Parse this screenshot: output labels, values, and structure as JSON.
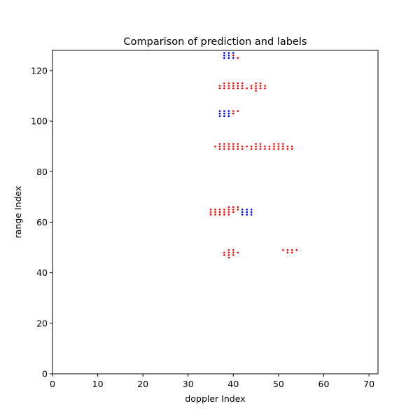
{
  "chart_data": {
    "type": "scatter",
    "title": "Comparison of prediction and labels",
    "xlabel": "doppler Index",
    "ylabel": "range Index",
    "xlim": [
      0,
      72
    ],
    "ylim": [
      0,
      128
    ],
    "xticks": [
      "0",
      "10",
      "20",
      "30",
      "40",
      "50",
      "60",
      "70"
    ],
    "yticks": [
      "0",
      "20",
      "40",
      "60",
      "80",
      "100",
      "120"
    ],
    "grid": false,
    "legend": "none",
    "series": [
      {
        "color": "#0000ff",
        "points": [
          [
            38,
            125
          ],
          [
            38,
            126
          ],
          [
            38,
            127
          ],
          [
            39,
            125
          ],
          [
            39,
            126
          ],
          [
            39,
            127
          ],
          [
            40,
            125
          ],
          [
            40,
            126
          ],
          [
            40,
            127
          ],
          [
            37,
            102
          ],
          [
            37,
            103
          ],
          [
            37,
            104
          ],
          [
            38,
            102
          ],
          [
            38,
            103
          ],
          [
            38,
            104
          ],
          [
            39,
            102
          ],
          [
            39,
            103
          ],
          [
            39,
            104
          ],
          [
            42,
            63
          ],
          [
            42,
            64
          ],
          [
            42,
            65
          ],
          [
            43,
            63
          ],
          [
            43,
            64
          ],
          [
            43,
            65
          ],
          [
            44,
            63
          ],
          [
            44,
            64
          ],
          [
            44,
            65
          ]
        ]
      },
      {
        "color": "#ff0000",
        "points": [
          [
            41,
            125
          ],
          [
            40,
            126
          ],
          [
            37,
            113
          ],
          [
            37,
            114
          ],
          [
            38,
            113
          ],
          [
            38,
            114
          ],
          [
            38,
            115
          ],
          [
            39,
            113
          ],
          [
            39,
            114
          ],
          [
            39,
            115
          ],
          [
            40,
            113
          ],
          [
            40,
            114
          ],
          [
            40,
            115
          ],
          [
            41,
            113
          ],
          [
            41,
            114
          ],
          [
            41,
            115
          ],
          [
            42,
            113
          ],
          [
            42,
            114
          ],
          [
            42,
            115
          ],
          [
            43,
            113
          ],
          [
            44,
            113
          ],
          [
            44,
            114
          ],
          [
            45,
            112
          ],
          [
            45,
            113
          ],
          [
            45,
            114
          ],
          [
            45,
            115
          ],
          [
            46,
            113
          ],
          [
            46,
            114
          ],
          [
            46,
            115
          ],
          [
            47,
            113
          ],
          [
            47,
            114
          ],
          [
            40,
            103
          ],
          [
            40,
            104
          ],
          [
            41,
            104
          ],
          [
            36,
            90
          ],
          [
            37,
            89
          ],
          [
            37,
            90
          ],
          [
            37,
            91
          ],
          [
            38,
            89
          ],
          [
            38,
            90
          ],
          [
            38,
            91
          ],
          [
            39,
            89
          ],
          [
            39,
            90
          ],
          [
            39,
            91
          ],
          [
            40,
            89
          ],
          [
            40,
            90
          ],
          [
            40,
            91
          ],
          [
            41,
            89
          ],
          [
            41,
            90
          ],
          [
            41,
            91
          ],
          [
            42,
            89
          ],
          [
            42,
            90
          ],
          [
            43,
            90
          ],
          [
            44,
            89
          ],
          [
            44,
            90
          ],
          [
            45,
            89
          ],
          [
            45,
            90
          ],
          [
            45,
            91
          ],
          [
            46,
            89
          ],
          [
            46,
            90
          ],
          [
            46,
            91
          ],
          [
            47,
            89
          ],
          [
            47,
            90
          ],
          [
            48,
            89
          ],
          [
            48,
            90
          ],
          [
            49,
            89
          ],
          [
            49,
            90
          ],
          [
            49,
            91
          ],
          [
            50,
            89
          ],
          [
            50,
            90
          ],
          [
            50,
            91
          ],
          [
            51,
            89
          ],
          [
            51,
            90
          ],
          [
            51,
            91
          ],
          [
            52,
            89
          ],
          [
            52,
            90
          ],
          [
            53,
            89
          ],
          [
            53,
            90
          ],
          [
            35,
            63
          ],
          [
            35,
            64
          ],
          [
            35,
            65
          ],
          [
            36,
            63
          ],
          [
            36,
            64
          ],
          [
            36,
            65
          ],
          [
            37,
            63
          ],
          [
            37,
            64
          ],
          [
            37,
            65
          ],
          [
            38,
            63
          ],
          [
            38,
            64
          ],
          [
            38,
            65
          ],
          [
            39,
            63
          ],
          [
            39,
            64
          ],
          [
            39,
            65
          ],
          [
            39,
            66
          ],
          [
            40,
            64
          ],
          [
            40,
            65
          ],
          [
            40,
            66
          ],
          [
            41,
            65
          ],
          [
            41,
            66
          ],
          [
            38,
            47
          ],
          [
            38,
            48
          ],
          [
            39,
            46
          ],
          [
            39,
            47
          ],
          [
            39,
            48
          ],
          [
            39,
            49
          ],
          [
            40,
            47
          ],
          [
            40,
            48
          ],
          [
            40,
            49
          ],
          [
            41,
            48
          ],
          [
            51,
            49
          ],
          [
            52,
            48
          ],
          [
            52,
            49
          ],
          [
            53,
            48
          ],
          [
            53,
            49
          ],
          [
            54,
            49
          ]
        ]
      }
    ]
  }
}
